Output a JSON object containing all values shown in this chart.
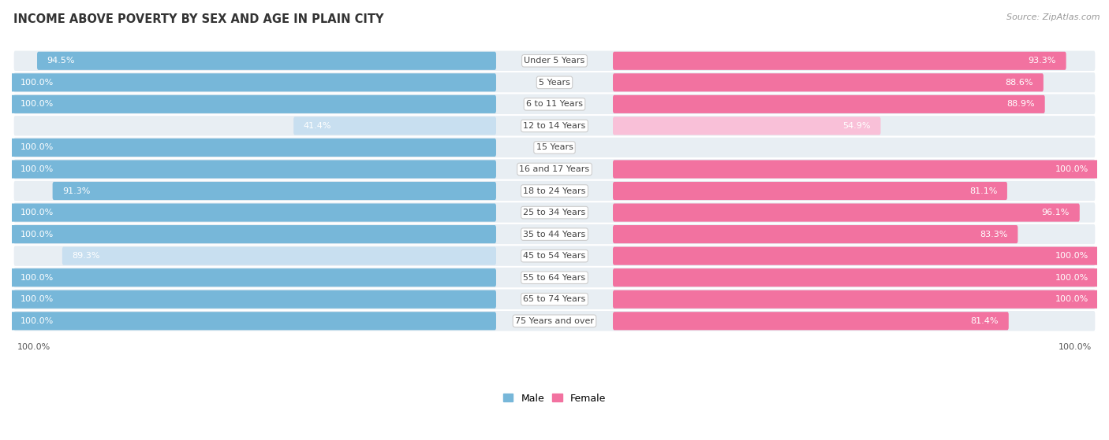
{
  "title": "INCOME ABOVE POVERTY BY SEX AND AGE IN PLAIN CITY",
  "source": "Source: ZipAtlas.com",
  "categories": [
    "Under 5 Years",
    "5 Years",
    "6 to 11 Years",
    "12 to 14 Years",
    "15 Years",
    "16 and 17 Years",
    "18 to 24 Years",
    "25 to 34 Years",
    "35 to 44 Years",
    "45 to 54 Years",
    "55 to 64 Years",
    "65 to 74 Years",
    "75 Years and over"
  ],
  "male_values": [
    94.5,
    100.0,
    100.0,
    41.4,
    100.0,
    100.0,
    91.3,
    100.0,
    100.0,
    89.3,
    100.0,
    100.0,
    100.0
  ],
  "female_values": [
    93.3,
    88.6,
    88.9,
    54.9,
    0.0,
    100.0,
    81.1,
    96.1,
    83.3,
    100.0,
    100.0,
    100.0,
    81.4
  ],
  "male_color": "#77b7d9",
  "female_color": "#f272a0",
  "male_color_light": "#c8dff0",
  "female_color_light": "#f9c0d8",
  "row_bg_color": "#e8eef3",
  "row_alt_bg": "#dde6ee",
  "title_fontsize": 10.5,
  "label_fontsize": 8,
  "value_fontsize": 8,
  "legend_fontsize": 9,
  "source_fontsize": 8,
  "footer_male": "100.0%",
  "footer_female": "100.0%"
}
